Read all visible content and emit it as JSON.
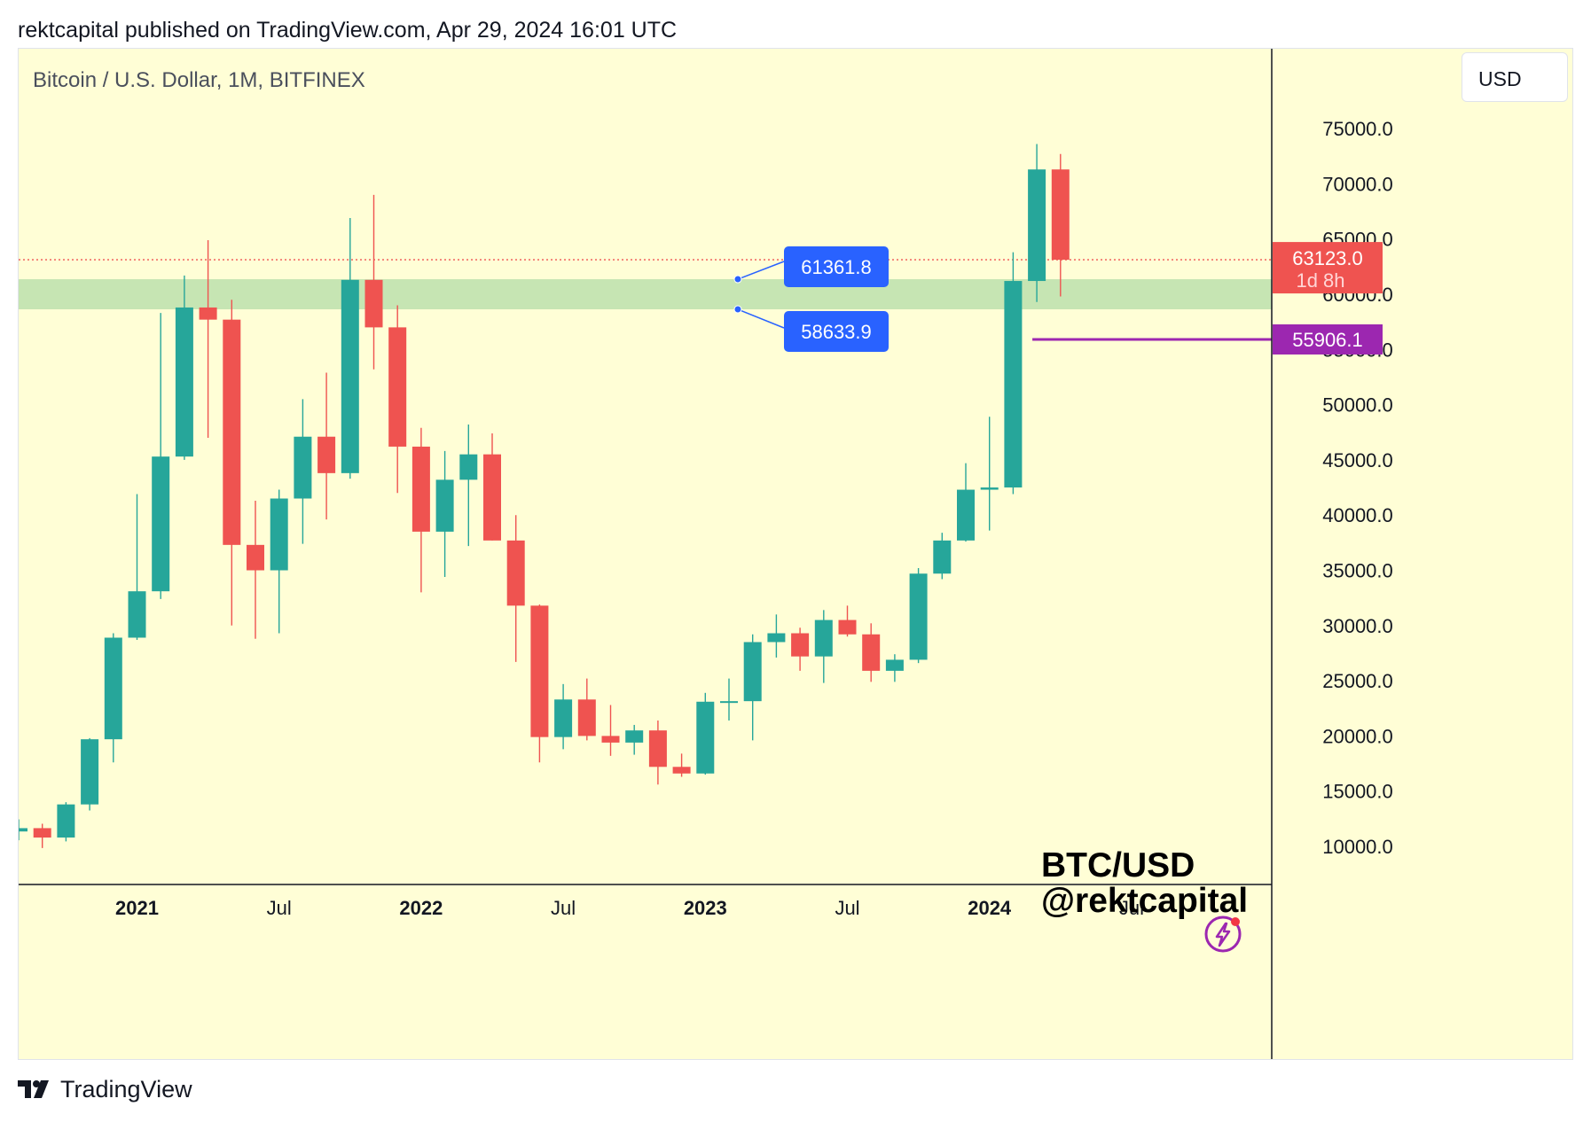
{
  "header": {
    "published_line": "rektcapital published on TradingView.com, Apr 29, 2024 16:01 UTC"
  },
  "chart": {
    "symbol_title": "Bitcoin / U.S. Dollar, 1M, BITFINEX",
    "currency_button": "USD",
    "watermark_line1": "BTC/USD",
    "watermark_line2": "@rektcapital",
    "last_price_label": "63123.0",
    "countdown_label": "1d 8h",
    "marker_price_label": "55906.1",
    "zone_top_label": "61361.8",
    "zone_bottom_label": "58633.9"
  },
  "footer": {
    "brand": "TradingView"
  },
  "colors": {
    "background": "#fffed6",
    "up": "#26a69a",
    "down": "#ef5350",
    "zone": "#c6e5b3",
    "callout": "#2962ff",
    "marker": "#9c27b0"
  },
  "icons": {
    "lightning": "lightning-icon",
    "logo": "tradingview-logo-icon"
  },
  "chart_data": {
    "type": "candlestick",
    "symbol": "BTC/USD",
    "timeframe": "1M",
    "exchange": "BITFINEX",
    "y_ticks": [
      10000,
      15000,
      20000,
      25000,
      30000,
      35000,
      40000,
      45000,
      50000,
      55000,
      60000,
      65000,
      70000,
      75000
    ],
    "y_tick_labels": [
      "10000.0",
      "15000.0",
      "20000.0",
      "25000.0",
      "30000.0",
      "35000.0",
      "40000.0",
      "45000.0",
      "50000.0",
      "55000.0",
      "60000.0",
      "65000.0",
      "70000.0",
      "75000.0"
    ],
    "x_ticks": [
      {
        "date": "2021-01",
        "label": "2021",
        "bold": true
      },
      {
        "date": "2021-07",
        "label": "Jul",
        "bold": false
      },
      {
        "date": "2022-01",
        "label": "2022",
        "bold": true
      },
      {
        "date": "2022-07",
        "label": "Jul",
        "bold": false
      },
      {
        "date": "2023-01",
        "label": "2023",
        "bold": true
      },
      {
        "date": "2023-07",
        "label": "Jul",
        "bold": false
      },
      {
        "date": "2024-01",
        "label": "2024",
        "bold": true
      },
      {
        "date": "2024-07",
        "label": "Jul",
        "bold": false
      }
    ],
    "candles": [
      {
        "date": "2020-08",
        "open": 11350,
        "high": 12450,
        "low": 10550,
        "close": 11650
      },
      {
        "date": "2020-09",
        "open": 11650,
        "high": 12050,
        "low": 9850,
        "close": 10800
      },
      {
        "date": "2020-10",
        "open": 10800,
        "high": 14000,
        "low": 10450,
        "close": 13800
      },
      {
        "date": "2020-11",
        "open": 13800,
        "high": 19800,
        "low": 13250,
        "close": 19700
      },
      {
        "date": "2020-12",
        "open": 19700,
        "high": 29300,
        "low": 17600,
        "close": 28900
      },
      {
        "date": "2021-01",
        "open": 28900,
        "high": 41900,
        "low": 28700,
        "close": 33100
      },
      {
        "date": "2021-02",
        "open": 33100,
        "high": 58300,
        "low": 32400,
        "close": 45300
      },
      {
        "date": "2021-03",
        "open": 45300,
        "high": 61700,
        "low": 45000,
        "close": 58800
      },
      {
        "date": "2021-04",
        "open": 58800,
        "high": 64900,
        "low": 47000,
        "close": 57700
      },
      {
        "date": "2021-05",
        "open": 57700,
        "high": 59500,
        "low": 30000,
        "close": 37300
      },
      {
        "date": "2021-06",
        "open": 37300,
        "high": 41300,
        "low": 28800,
        "close": 35000
      },
      {
        "date": "2021-07",
        "open": 35000,
        "high": 42300,
        "low": 29300,
        "close": 41500
      },
      {
        "date": "2021-08",
        "open": 41500,
        "high": 50500,
        "low": 37400,
        "close": 47100
      },
      {
        "date": "2021-09",
        "open": 47100,
        "high": 52900,
        "low": 39600,
        "close": 43800
      },
      {
        "date": "2021-10",
        "open": 43800,
        "high": 66900,
        "low": 43300,
        "close": 61300
      },
      {
        "date": "2021-11",
        "open": 61300,
        "high": 69000,
        "low": 53200,
        "close": 57000
      },
      {
        "date": "2021-12",
        "open": 57000,
        "high": 59000,
        "low": 42000,
        "close": 46200
      },
      {
        "date": "2022-01",
        "open": 46200,
        "high": 47900,
        "low": 33000,
        "close": 38500
      },
      {
        "date": "2022-02",
        "open": 38500,
        "high": 45800,
        "low": 34400,
        "close": 43200
      },
      {
        "date": "2022-03",
        "open": 43200,
        "high": 48200,
        "low": 37200,
        "close": 45500
      },
      {
        "date": "2022-04",
        "open": 45500,
        "high": 47400,
        "low": 37700,
        "close": 37700
      },
      {
        "date": "2022-05",
        "open": 37700,
        "high": 40000,
        "low": 26700,
        "close": 31800
      },
      {
        "date": "2022-06",
        "open": 31800,
        "high": 31900,
        "low": 17600,
        "close": 19900
      },
      {
        "date": "2022-07",
        "open": 19900,
        "high": 24700,
        "low": 18800,
        "close": 23300
      },
      {
        "date": "2022-08",
        "open": 23300,
        "high": 25200,
        "low": 19600,
        "close": 20000
      },
      {
        "date": "2022-09",
        "open": 20000,
        "high": 22800,
        "low": 18200,
        "close": 19400
      },
      {
        "date": "2022-10",
        "open": 19400,
        "high": 21000,
        "low": 18300,
        "close": 20500
      },
      {
        "date": "2022-11",
        "open": 20500,
        "high": 21400,
        "low": 15600,
        "close": 17200
      },
      {
        "date": "2022-12",
        "open": 17200,
        "high": 18400,
        "low": 16300,
        "close": 16600
      },
      {
        "date": "2023-01",
        "open": 16600,
        "high": 23900,
        "low": 16500,
        "close": 23100
      },
      {
        "date": "2023-02",
        "open": 23100,
        "high": 25200,
        "low": 21400,
        "close": 23150
      },
      {
        "date": "2023-03",
        "open": 23150,
        "high": 29200,
        "low": 19600,
        "close": 28500
      },
      {
        "date": "2023-04",
        "open": 28500,
        "high": 31000,
        "low": 27100,
        "close": 29300
      },
      {
        "date": "2023-05",
        "open": 29300,
        "high": 29800,
        "low": 25900,
        "close": 27200
      },
      {
        "date": "2023-06",
        "open": 27200,
        "high": 31400,
        "low": 24800,
        "close": 30500
      },
      {
        "date": "2023-07",
        "open": 30500,
        "high": 31800,
        "low": 29000,
        "close": 29200
      },
      {
        "date": "2023-08",
        "open": 29200,
        "high": 30200,
        "low": 24900,
        "close": 25900
      },
      {
        "date": "2023-09",
        "open": 25900,
        "high": 27400,
        "low": 24900,
        "close": 26900
      },
      {
        "date": "2023-10",
        "open": 26900,
        "high": 35200,
        "low": 26600,
        "close": 34700
      },
      {
        "date": "2023-11",
        "open": 34700,
        "high": 38400,
        "low": 34200,
        "close": 37700
      },
      {
        "date": "2023-12",
        "open": 37700,
        "high": 44700,
        "low": 37600,
        "close": 42300
      },
      {
        "date": "2024-01",
        "open": 42300,
        "high": 48900,
        "low": 38600,
        "close": 42500
      },
      {
        "date": "2024-02",
        "open": 42500,
        "high": 63800,
        "low": 41900,
        "close": 61200
      },
      {
        "date": "2024-03",
        "open": 61200,
        "high": 73600,
        "low": 59300,
        "close": 71300
      },
      {
        "date": "2024-04",
        "open": 71300,
        "high": 72700,
        "low": 59800,
        "close": 63123
      }
    ],
    "horizontal_levels": [
      {
        "price": 63123.0,
        "label": "63123.0",
        "style": "dotted",
        "color": "#ef5350"
      },
      {
        "price": 55906.1,
        "label": "55906.1",
        "style": "solid",
        "color": "#9c27b0",
        "start_date": "2024-03"
      }
    ],
    "zones": [
      {
        "top": 61361.8,
        "bottom": 58633.9,
        "color": "#c6e5b3"
      }
    ],
    "callouts": [
      "61361.8",
      "58633.9"
    ]
  }
}
